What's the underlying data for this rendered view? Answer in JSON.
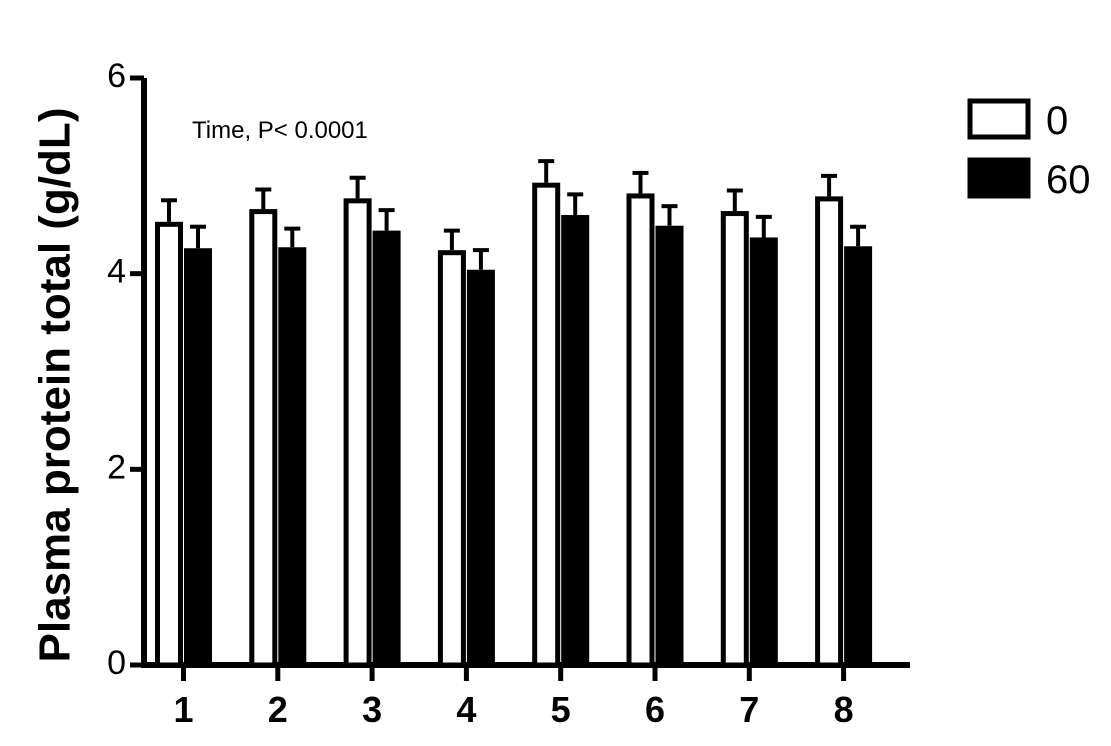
{
  "chart_data": {
    "type": "bar",
    "categories": [
      "1",
      "2",
      "3",
      "4",
      "5",
      "6",
      "7",
      "8"
    ],
    "series": [
      {
        "name": "0",
        "values": [
          4.53,
          4.66,
          4.77,
          4.24,
          4.93,
          4.82,
          4.64,
          4.79
        ],
        "errors": [
          0.22,
          0.2,
          0.21,
          0.2,
          0.22,
          0.21,
          0.21,
          0.21
        ],
        "fill": "#ffffff",
        "stroke": "#000000"
      },
      {
        "name": "60",
        "values": [
          4.26,
          4.27,
          4.44,
          4.04,
          4.6,
          4.49,
          4.37,
          4.28
        ],
        "errors": [
          0.22,
          0.19,
          0.21,
          0.2,
          0.21,
          0.2,
          0.21,
          0.2
        ],
        "fill": "#000000",
        "stroke": "#000000"
      }
    ],
    "ylabel": "Plasma protein total (g/dL)",
    "xlabel": "",
    "ylim": [
      0,
      6
    ],
    "yticks": [
      0,
      2,
      4,
      6
    ],
    "annotation": "Time,  P< 0.0001",
    "legend_position": "top-right",
    "grid": false
  }
}
